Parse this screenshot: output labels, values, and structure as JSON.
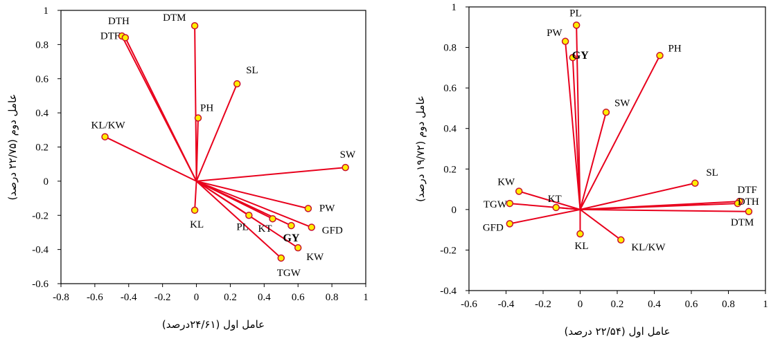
{
  "chart_data": [
    {
      "type": "scatter",
      "variant": "biplot",
      "xlabel": "عامل اول (۲۴/۶۱درصد)",
      "ylabel": "عامل دوم (۲۲/۷۵ درصد)",
      "xlim": [
        -0.8,
        1
      ],
      "ylim": [
        -0.6,
        1
      ],
      "xticks": [
        "-0.8",
        "-0.6",
        "-0.4",
        "-0.2",
        "0",
        "0.2",
        "0.4",
        "0.6",
        "0.8",
        "1"
      ],
      "yticks": [
        "-0.6",
        "-0.4",
        "-0.2",
        "0",
        "0.2",
        "0.4",
        "0.6",
        "0.8",
        "1"
      ],
      "grid": false,
      "line_color": "#e8001c",
      "marker_fill": "#ffee00",
      "marker_stroke": "#c8102e",
      "points": [
        {
          "label": "DTH",
          "x": -0.44,
          "y": 0.85
        },
        {
          "label": "DTF",
          "x": -0.42,
          "y": 0.84
        },
        {
          "label": "DTM",
          "x": -0.01,
          "y": 0.91
        },
        {
          "label": "SL",
          "x": 0.24,
          "y": 0.57
        },
        {
          "label": "PH",
          "x": 0.01,
          "y": 0.37
        },
        {
          "label": "KL/KW",
          "x": -0.54,
          "y": 0.26
        },
        {
          "label": "SW",
          "x": 0.88,
          "y": 0.08
        },
        {
          "label": "KL",
          "x": -0.01,
          "y": -0.17
        },
        {
          "label": "PW",
          "x": 0.66,
          "y": -0.16
        },
        {
          "label": "PL",
          "x": 0.31,
          "y": -0.2
        },
        {
          "label": "KT",
          "x": 0.45,
          "y": -0.22
        },
        {
          "label": "GY",
          "x": 0.56,
          "y": -0.26,
          "bold": true
        },
        {
          "label": "GFD",
          "x": 0.68,
          "y": -0.27
        },
        {
          "label": "KW",
          "x": 0.6,
          "y": -0.39
        },
        {
          "label": "TGW",
          "x": 0.5,
          "y": -0.45
        }
      ]
    },
    {
      "type": "scatter",
      "variant": "biplot",
      "xlabel": "عامل اول (۲۲/۵۴ درصد)",
      "ylabel": "عامل دوم (۱۹/۷۲ درصد)",
      "xlim": [
        -0.6,
        1
      ],
      "ylim": [
        -0.4,
        1
      ],
      "xticks": [
        "-0.6",
        "-0.4",
        "-0.2",
        "0",
        "0.2",
        "0.4",
        "0.6",
        "0.8",
        "1"
      ],
      "yticks": [
        "-0.4",
        "-0.2",
        "0",
        "0.2",
        "0.4",
        "0.6",
        "0.8",
        "1"
      ],
      "grid": false,
      "line_color": "#e8001c",
      "marker_fill": "#ffee00",
      "marker_stroke": "#c8102e",
      "points": [
        {
          "label": "PL",
          "x": -0.02,
          "y": 0.91
        },
        {
          "label": "PW",
          "x": -0.08,
          "y": 0.83
        },
        {
          "label": "GY",
          "x": -0.04,
          "y": 0.75,
          "bold": true
        },
        {
          "label": "PH",
          "x": 0.43,
          "y": 0.76
        },
        {
          "label": "SW",
          "x": 0.14,
          "y": 0.48
        },
        {
          "label": "SL",
          "x": 0.62,
          "y": 0.13
        },
        {
          "label": "DTF",
          "x": 0.86,
          "y": 0.04
        },
        {
          "label": "DTH",
          "x": 0.85,
          "y": 0.03
        },
        {
          "label": "DTM",
          "x": 0.91,
          "y": -0.01
        },
        {
          "label": "KW",
          "x": -0.33,
          "y": 0.09
        },
        {
          "label": "TGW",
          "x": -0.38,
          "y": 0.03
        },
        {
          "label": "KT",
          "x": -0.13,
          "y": 0.01
        },
        {
          "label": "GFD",
          "x": -0.38,
          "y": -0.07
        },
        {
          "label": "KL",
          "x": 0.0,
          "y": -0.12
        },
        {
          "label": "KL/KW",
          "x": 0.22,
          "y": -0.15
        }
      ]
    }
  ]
}
